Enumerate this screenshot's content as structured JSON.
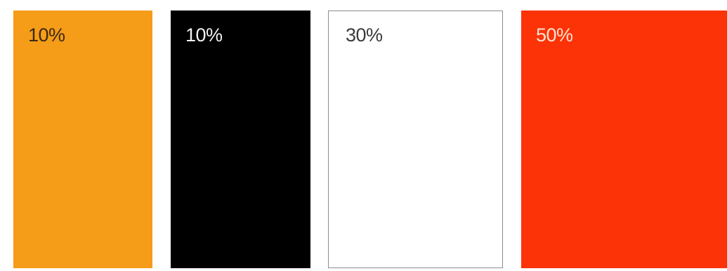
{
  "swatches": [
    {
      "label": "10%",
      "color": "#F59C18",
      "text_color": "#3b2a12"
    },
    {
      "label": "10%",
      "color": "#000000",
      "text_color": "#f2f2f2"
    },
    {
      "label": "30%",
      "color": "#ffffff",
      "text_color": "#3a3a3a",
      "border_color": "#8c8c8c"
    },
    {
      "label": "50%",
      "color": "#FC3306",
      "text_color": "#ffe2d6"
    }
  ]
}
